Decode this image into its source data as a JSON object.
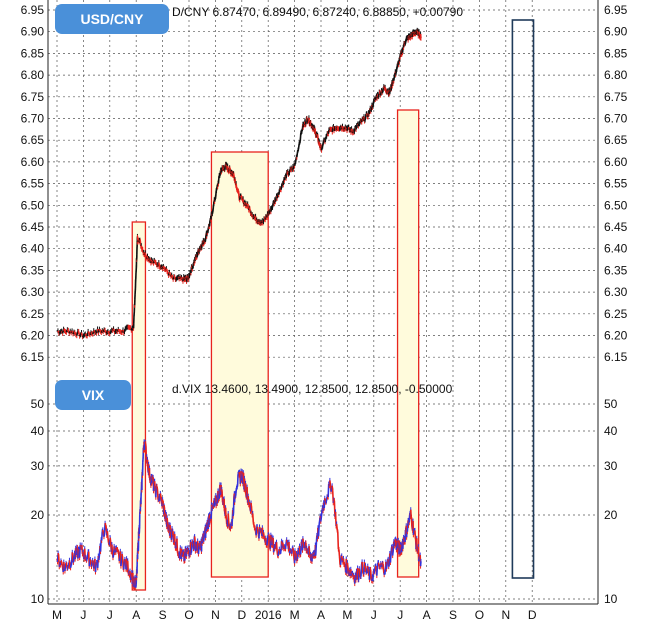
{
  "chart_data": [
    {
      "type": "line",
      "title": "USD/CNY",
      "header": "D/CNY 6.87470, 6.89490, 6.87240, 6.88850, +0.00790",
      "ylim": [
        6.12,
        6.96
      ],
      "yticks": [
        "6.95",
        "6.90",
        "6.85",
        "6.80",
        "6.75",
        "6.70",
        "6.65",
        "6.60",
        "6.55",
        "6.50",
        "6.45",
        "6.40",
        "6.35",
        "6.30",
        "6.25",
        "6.20",
        "6.15"
      ],
      "series_colors": {
        "up": "#111111",
        "down": "#e8231d"
      },
      "x": [
        0,
        0.5,
        1,
        1.5,
        2,
        2.5,
        2.9,
        3.0,
        3.05,
        3.3,
        3.6,
        4.0,
        4.4,
        4.8,
        4.95,
        5.2,
        5.4,
        5.6,
        5.8,
        6.0,
        6.2,
        6.4,
        6.55,
        6.7,
        6.9,
        7.2,
        7.5,
        7.8,
        8.1,
        8.4,
        8.7,
        9.0,
        9.3,
        9.5,
        9.7,
        9.85,
        10.0,
        10.3,
        10.6,
        10.9,
        11.2,
        11.5,
        11.8,
        12.1,
        12.4,
        12.6,
        12.8,
        13.0,
        13.2,
        13.4,
        13.6,
        13.8
      ],
      "values": [
        6.21,
        6.21,
        6.2,
        6.21,
        6.21,
        6.21,
        6.22,
        6.35,
        6.43,
        6.39,
        6.37,
        6.36,
        6.33,
        6.33,
        6.33,
        6.37,
        6.4,
        6.42,
        6.46,
        6.52,
        6.58,
        6.59,
        6.58,
        6.57,
        6.52,
        6.5,
        6.47,
        6.46,
        6.49,
        6.53,
        6.57,
        6.59,
        6.68,
        6.7,
        6.68,
        6.66,
        6.63,
        6.67,
        6.68,
        6.68,
        6.67,
        6.69,
        6.71,
        6.75,
        6.77,
        6.76,
        6.8,
        6.84,
        6.88,
        6.89,
        6.9,
        6.89
      ]
    },
    {
      "type": "line",
      "title": "VIX",
      "header": "d.VIX 13.4600, 13.4900, 12.8500, 12.8500, -0.50000",
      "ylim": [
        10,
        55
      ],
      "yscale": "log",
      "yticks": [
        "50",
        "40",
        "30",
        "20",
        "10"
      ],
      "series_colors": {
        "up": "#3333dd",
        "down": "#e8231d"
      },
      "x": [
        0,
        0.3,
        0.6,
        0.9,
        1.2,
        1.5,
        1.8,
        2.1,
        2.4,
        2.7,
        3.0,
        3.1,
        3.2,
        3.3,
        3.5,
        3.7,
        4.0,
        4.2,
        4.4,
        4.6,
        4.8,
        5.0,
        5.2,
        5.4,
        5.6,
        5.8,
        6.0,
        6.2,
        6.4,
        6.6,
        6.8,
        7.0,
        7.2,
        7.5,
        7.8,
        8.1,
        8.4,
        8.7,
        9.0,
        9.2,
        9.4,
        9.6,
        9.8,
        10.1,
        10.4,
        10.7,
        11.0,
        11.3,
        11.6,
        11.9,
        12.2,
        12.5,
        12.8,
        13.0,
        13.2,
        13.4,
        13.6,
        13.8
      ],
      "values": [
        14,
        13,
        14,
        15,
        14,
        13,
        18,
        15,
        14,
        13,
        11,
        17,
        24,
        37,
        28,
        25,
        22,
        18,
        17,
        15,
        14,
        15,
        16,
        15,
        17,
        20,
        22,
        25,
        20,
        18,
        26,
        28,
        24,
        18,
        17,
        16,
        15,
        16,
        14,
        15,
        16,
        14,
        15,
        22,
        26,
        14,
        13,
        12,
        13,
        12,
        13,
        13,
        16,
        15,
        17,
        20,
        16,
        13
      ]
    }
  ],
  "x_axis": {
    "ticks": [
      "M",
      "J",
      "J",
      "A",
      "S",
      "O",
      "N",
      "D",
      "2016",
      "M",
      "A",
      "M",
      "J",
      "J",
      "A",
      "S",
      "O",
      "N",
      "D"
    ],
    "tick_positions": [
      0,
      1,
      2,
      3,
      4,
      5,
      6,
      7,
      8,
      9,
      10,
      11,
      12,
      13,
      14,
      15,
      16,
      17,
      18
    ]
  },
  "annotations": [
    {
      "style": "red-box",
      "x_range": [
        2.85,
        3.35
      ]
    },
    {
      "style": "red-box",
      "x_range": [
        5.85,
        8.0
      ]
    },
    {
      "style": "red-box",
      "x_range": [
        12.9,
        13.7
      ]
    },
    {
      "style": "blue-box",
      "x_range": [
        17.25,
        18.05
      ]
    }
  ],
  "colors": {
    "badge": "#4a90d9",
    "red_box": "#e8231d",
    "blue_box": "#1f3a5a",
    "box_fill": "#fffbdc"
  }
}
